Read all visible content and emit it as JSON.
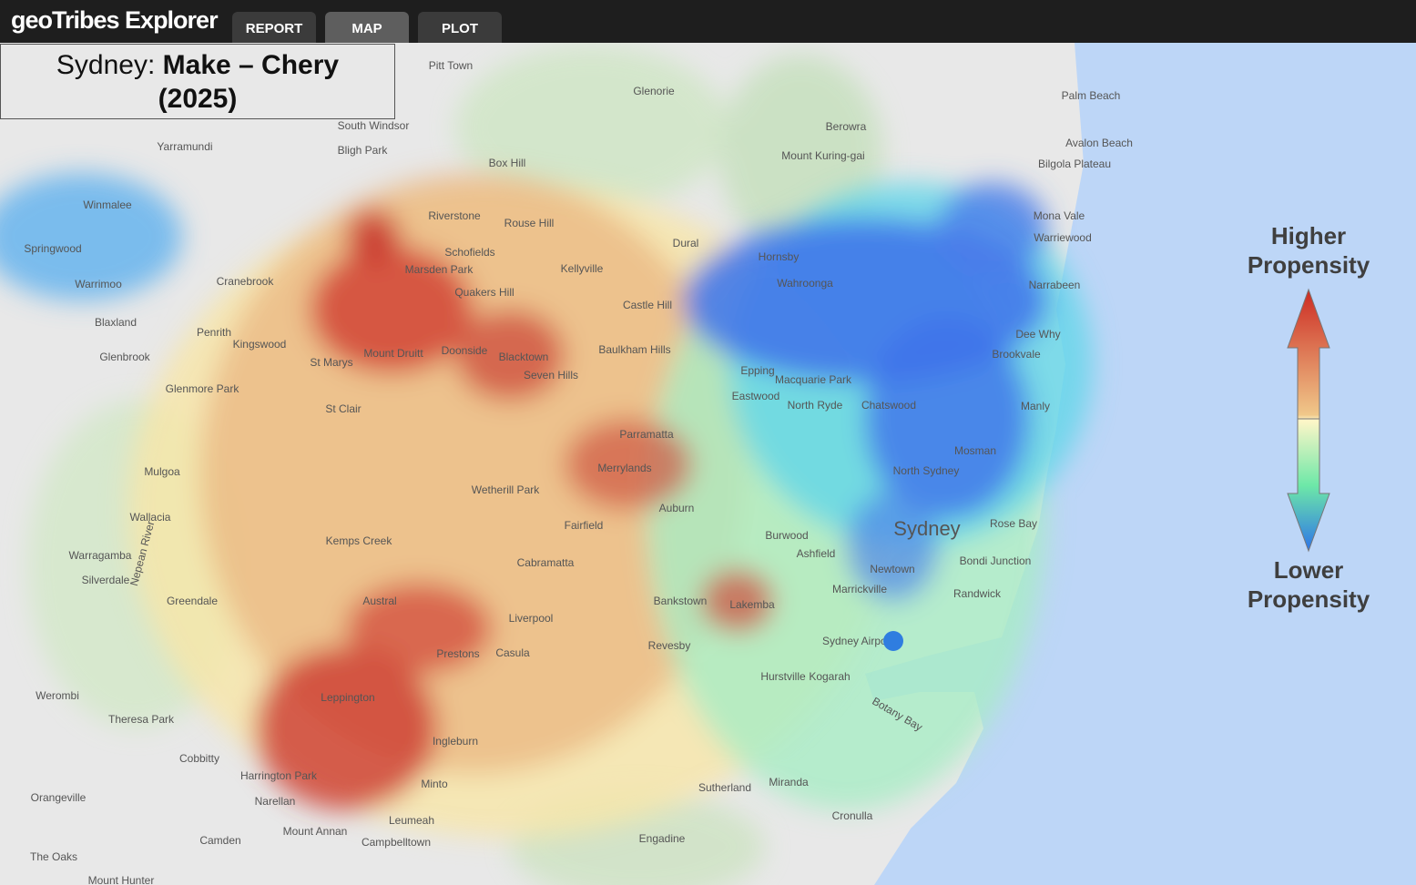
{
  "header": {
    "logo": "geoTribes Explorer",
    "tabs": [
      "REPORT",
      "MAP",
      "PLOT"
    ]
  },
  "title": {
    "place": "Sydney:",
    "subject": "Make – Chery",
    "year": "(2025)"
  },
  "legend": {
    "high": "Higher Propensity",
    "low": "Lower Propensity"
  },
  "map": {
    "labels": [
      "Pitt Town",
      "Glenorie",
      "Palm Beach",
      "South Windsor",
      "Berowra",
      "Avalon Beach",
      "Yarramundi",
      "Bligh Park",
      "Mount Kuring-gai",
      "Box Hill",
      "Bilgola Plateau",
      "Winmalee",
      "Riverstone",
      "Rouse Hill",
      "Mona Vale",
      "Springwood",
      "Dural",
      "Schofields",
      "Warriewood",
      "Hornsby",
      "Kellyville",
      "Marsden Park",
      "Cranebrook",
      "Wahroonga",
      "Warrimoo",
      "Narrabeen",
      "Quakers Hill",
      "Castle Hill",
      "Blaxland",
      "Penrith",
      "Dee Why",
      "Kingswood",
      "Baulkham Hills",
      "Mount Druitt",
      "Doonside",
      "Blacktown",
      "Glenbrook",
      "Brookvale",
      "St Marys",
      "Seven Hills",
      "Epping",
      "Macquarie Park",
      "Glenmore Park",
      "Eastwood",
      "Chatswood",
      "North Ryde",
      "Manly",
      "St Clair",
      "Parramatta",
      "Mosman",
      "North Sydney",
      "Mulgoa",
      "Merrylands",
      "Wetherill Park",
      "Auburn",
      "Wallacia",
      "Sydney",
      "Rose Bay",
      "Fairfield",
      "Burwood",
      "Kemps Creek",
      "Warragamba",
      "Nepean River",
      "Ashfield",
      "Bondi Junction",
      "Cabramatta",
      "Newtown",
      "Silverdale",
      "Marrickville",
      "Randwick",
      "Greendale",
      "Austral",
      "Bankstown",
      "Lakemba",
      "Liverpool",
      "Sydney Airport",
      "Revesby",
      "Prestons",
      "Casula",
      "Hurstville",
      "Kogarah",
      "Werombi",
      "Leppington",
      "Botany Bay",
      "Theresa Park",
      "Ingleburn",
      "Cobbitty",
      "Harrington Park",
      "Minto",
      "Sutherland",
      "Miranda",
      "Narellan",
      "Orangeville",
      "Cronulla",
      "Leumeah",
      "Mount Annan",
      "Camden",
      "Campbelltown",
      "Engadine",
      "The Oaks",
      "Mount Hunter"
    ]
  }
}
